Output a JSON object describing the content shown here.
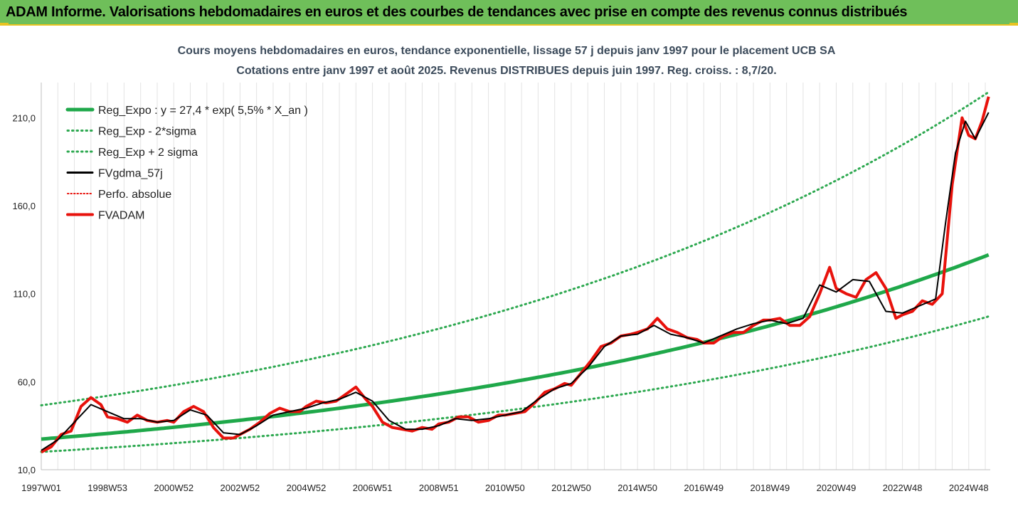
{
  "banner": {
    "title": "ADAM Informe. Valorisations hebdomadaires en euros et des courbes de tendances avec prise en compte des revenus connus distribués"
  },
  "colors": {
    "banner_bg": "#6fbf5a",
    "accent": "#e8c320",
    "reg_expo": "#1fa84a",
    "sigma": "#2ca84f",
    "fvgdma": "#000000",
    "fvadam": "#e8120c"
  },
  "chart_data": {
    "type": "line",
    "title_line1": "Cours moyens hebdomadaires en euros, tendance exponentielle, lissage 57 j depuis janv 1997 pour le placement UCB SA",
    "title_line2": "Cotations entre janv 1997 et août 2025. Revenus DISTRIBUES depuis juin 1997. Reg. croiss. : 8,7/20.",
    "ylim": [
      10,
      230
    ],
    "xlim": [
      1997.0,
      2025.65
    ],
    "y_ticks": [
      {
        "value": 10,
        "label": "10,0"
      },
      {
        "value": 60,
        "label": "60,0"
      },
      {
        "value": 110,
        "label": "110,0"
      },
      {
        "value": 160,
        "label": "160,0"
      },
      {
        "value": 210,
        "label": "210,0"
      }
    ],
    "x_ticks": [
      {
        "value": 1997.0,
        "label": "1997W01"
      },
      {
        "value": 1999.0,
        "label": "1998W53"
      },
      {
        "value": 2001.0,
        "label": "2000W52"
      },
      {
        "value": 2003.0,
        "label": "2002W52"
      },
      {
        "value": 2005.0,
        "label": "2004W52"
      },
      {
        "value": 2007.0,
        "label": "2006W51"
      },
      {
        "value": 2009.0,
        "label": "2008W51"
      },
      {
        "value": 2011.0,
        "label": "2010W50"
      },
      {
        "value": 2013.0,
        "label": "2012W50"
      },
      {
        "value": 2015.0,
        "label": "2014W50"
      },
      {
        "value": 2017.0,
        "label": "2016W49"
      },
      {
        "value": 2019.0,
        "label": "2018W49"
      },
      {
        "value": 2021.0,
        "label": "2020W49"
      },
      {
        "value": 2023.0,
        "label": "2022W48"
      },
      {
        "value": 2025.0,
        "label": "2024W48"
      }
    ],
    "grid": "vertical",
    "legend_position": "top-left",
    "regression": {
      "a": 27.4,
      "rate": 0.055,
      "minus_2sigma_factor": 0.735,
      "plus_2sigma_factor": 1.7
    },
    "series": [
      {
        "name": "Reg_Expo : y = 27,4 * exp( 5,5% *  X_an )",
        "style": "solid-thick",
        "color": "#1fa84a"
      },
      {
        "name": "Reg_Exp - 2*sigma",
        "style": "dotted",
        "color": "#2ca84f"
      },
      {
        "name": "Reg_Exp + 2 sigma",
        "style": "dotted",
        "color": "#2ca84f"
      },
      {
        "name": "FVgdma_57j",
        "style": "solid",
        "color": "#000000"
      },
      {
        "name": "Perfo. absolue",
        "style": "dotted-red",
        "color": "#e8120c"
      },
      {
        "name": "FVADAM",
        "style": "solid-thick",
        "color": "#e8120c"
      }
    ],
    "fvadam": {
      "x": [
        1997.0,
        1997.3,
        1997.6,
        1997.9,
        1998.2,
        1998.5,
        1998.8,
        1999.0,
        1999.3,
        1999.6,
        1999.9,
        2000.2,
        2000.5,
        2000.8,
        2001.0,
        2001.3,
        2001.6,
        2001.9,
        2002.2,
        2002.5,
        2002.8,
        2003.0,
        2003.3,
        2003.6,
        2003.9,
        2004.2,
        2004.5,
        2004.8,
        2005.0,
        2005.3,
        2005.6,
        2005.9,
        2006.2,
        2006.5,
        2006.8,
        2007.0,
        2007.3,
        2007.6,
        2007.9,
        2008.2,
        2008.5,
        2008.8,
        2009.0,
        2009.3,
        2009.6,
        2009.9,
        2010.2,
        2010.5,
        2010.8,
        2011.0,
        2011.3,
        2011.6,
        2011.9,
        2012.2,
        2012.5,
        2012.8,
        2013.0,
        2013.3,
        2013.6,
        2013.9,
        2014.2,
        2014.5,
        2014.8,
        2015.0,
        2015.3,
        2015.6,
        2015.9,
        2016.2,
        2016.5,
        2016.8,
        2017.0,
        2017.3,
        2017.6,
        2017.9,
        2018.2,
        2018.5,
        2018.8,
        2019.0,
        2019.3,
        2019.6,
        2019.9,
        2020.2,
        2020.5,
        2020.8,
        2021.0,
        2021.3,
        2021.6,
        2021.9,
        2022.2,
        2022.5,
        2022.8,
        2023.0,
        2023.3,
        2023.6,
        2023.9,
        2024.2,
        2024.5,
        2024.8,
        2025.0,
        2025.2,
        2025.4,
        2025.6
      ],
      "y": [
        20,
        23,
        30,
        32,
        46,
        51,
        47,
        40,
        39,
        37,
        41,
        38,
        37,
        38,
        37,
        43,
        46,
        43,
        34,
        28,
        28,
        30,
        33,
        37,
        42,
        45,
        43,
        43,
        46,
        49,
        48,
        49,
        53,
        57,
        50,
        46,
        37,
        34,
        33,
        32,
        34,
        33,
        36,
        37,
        40,
        40,
        37,
        38,
        41,
        41,
        42,
        43,
        48,
        54,
        56,
        59,
        58,
        65,
        72,
        80,
        82,
        86,
        87,
        88,
        90,
        96,
        90,
        88,
        85,
        84,
        82,
        82,
        86,
        88,
        88,
        92,
        95,
        95,
        96,
        92,
        92,
        97,
        110,
        125,
        113,
        110,
        108,
        118,
        122,
        113,
        96,
        98,
        100,
        106,
        104,
        110,
        172,
        210,
        200,
        198,
        208,
        222
      ]
    },
    "fvgdma": {
      "x": [
        1997.0,
        1997.5,
        1998.0,
        1998.5,
        1999.0,
        1999.5,
        2000.0,
        2000.5,
        2001.0,
        2001.5,
        2002.0,
        2002.5,
        2003.0,
        2003.5,
        2004.0,
        2004.5,
        2005.0,
        2005.5,
        2006.0,
        2006.5,
        2007.0,
        2007.5,
        2008.0,
        2008.5,
        2009.0,
        2009.5,
        2010.0,
        2010.5,
        2011.0,
        2011.5,
        2012.0,
        2012.5,
        2013.0,
        2013.5,
        2014.0,
        2014.5,
        2015.0,
        2015.5,
        2016.0,
        2016.5,
        2017.0,
        2017.5,
        2018.0,
        2018.5,
        2019.0,
        2019.5,
        2020.0,
        2020.5,
        2021.0,
        2021.5,
        2022.0,
        2022.5,
        2023.0,
        2023.5,
        2024.0,
        2024.3,
        2024.6,
        2024.9,
        2025.2,
        2025.6
      ],
      "y": [
        21,
        27,
        37,
        47,
        43,
        39,
        39,
        37,
        38,
        44,
        41,
        31,
        30,
        35,
        41,
        43,
        45,
        48,
        50,
        54,
        49,
        38,
        33,
        33,
        35,
        39,
        38,
        39,
        41,
        43,
        50,
        56,
        59,
        68,
        80,
        86,
        87,
        92,
        87,
        85,
        82,
        86,
        90,
        93,
        95,
        93,
        96,
        115,
        111,
        118,
        117,
        100,
        99,
        103,
        107,
        150,
        190,
        208,
        198,
        213
      ]
    }
  },
  "legend_labels": [
    "Reg_Expo : y = 27,4 * exp( 5,5% *  X_an )",
    "Reg_Exp - 2*sigma",
    "Reg_Exp + 2 sigma",
    "FVgdma_57j",
    "Perfo. absolue",
    "FVADAM"
  ]
}
